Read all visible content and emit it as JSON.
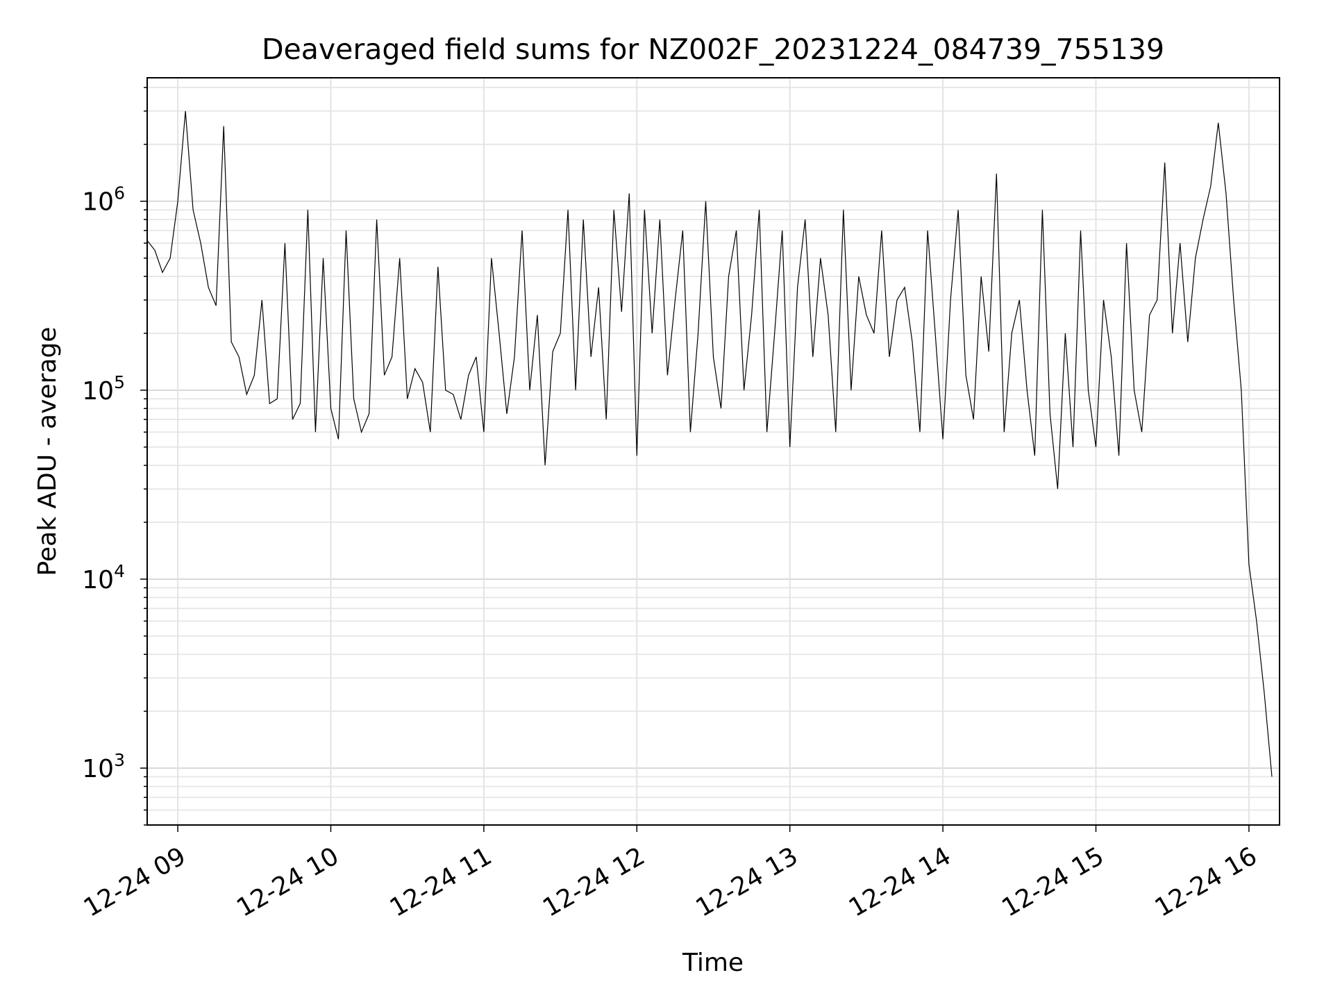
{
  "chart_data": {
    "type": "line",
    "title": "Deaveraged field sums for NZ002F_20231224_084739_755139",
    "xlabel": "Time",
    "ylabel": "Peak ADU - average",
    "y_scale": "log",
    "xlim": [
      "2023-12-24T08:48",
      "2023-12-24T16:12"
    ],
    "ylim": [
      500,
      4500000
    ],
    "grid": true,
    "legend": "none",
    "x_tick_labels": [
      "12-24 09",
      "12-24 10",
      "12-24 11",
      "12-24 12",
      "12-24 13",
      "12-24 14",
      "12-24 15",
      "12-24 16"
    ],
    "y_tick_labels": [
      {
        "base": "10",
        "exp": "3"
      },
      {
        "base": "10",
        "exp": "4"
      },
      {
        "base": "10",
        "exp": "5"
      },
      {
        "base": "10",
        "exp": "6"
      }
    ],
    "series": [
      {
        "color": "#000000",
        "x": [
          "2023-12-24T08:48",
          "2023-12-24T08:51",
          "2023-12-24T08:54",
          "2023-12-24T08:57",
          "2023-12-24T09:00",
          "2023-12-24T09:03",
          "2023-12-24T09:06",
          "2023-12-24T09:09",
          "2023-12-24T09:12",
          "2023-12-24T09:15",
          "2023-12-24T09:18",
          "2023-12-24T09:21",
          "2023-12-24T09:24",
          "2023-12-24T09:27",
          "2023-12-24T09:30",
          "2023-12-24T09:33",
          "2023-12-24T09:36",
          "2023-12-24T09:39",
          "2023-12-24T09:42",
          "2023-12-24T09:45",
          "2023-12-24T09:48",
          "2023-12-24T09:51",
          "2023-12-24T09:54",
          "2023-12-24T09:57",
          "2023-12-24T10:00",
          "2023-12-24T10:03",
          "2023-12-24T10:06",
          "2023-12-24T10:09",
          "2023-12-24T10:12",
          "2023-12-24T10:15",
          "2023-12-24T10:18",
          "2023-12-24T10:21",
          "2023-12-24T10:24",
          "2023-12-24T10:27",
          "2023-12-24T10:30",
          "2023-12-24T10:33",
          "2023-12-24T10:36",
          "2023-12-24T10:39",
          "2023-12-24T10:42",
          "2023-12-24T10:45",
          "2023-12-24T10:48",
          "2023-12-24T10:51",
          "2023-12-24T10:54",
          "2023-12-24T10:57",
          "2023-12-24T11:00",
          "2023-12-24T11:03",
          "2023-12-24T11:06",
          "2023-12-24T11:09",
          "2023-12-24T11:12",
          "2023-12-24T11:15",
          "2023-12-24T11:18",
          "2023-12-24T11:21",
          "2023-12-24T11:24",
          "2023-12-24T11:27",
          "2023-12-24T11:30",
          "2023-12-24T11:33",
          "2023-12-24T11:36",
          "2023-12-24T11:39",
          "2023-12-24T11:42",
          "2023-12-24T11:45",
          "2023-12-24T11:48",
          "2023-12-24T11:51",
          "2023-12-24T11:54",
          "2023-12-24T11:57",
          "2023-12-24T12:00",
          "2023-12-24T12:03",
          "2023-12-24T12:06",
          "2023-12-24T12:09",
          "2023-12-24T12:12",
          "2023-12-24T12:15",
          "2023-12-24T12:18",
          "2023-12-24T12:21",
          "2023-12-24T12:24",
          "2023-12-24T12:27",
          "2023-12-24T12:30",
          "2023-12-24T12:33",
          "2023-12-24T12:36",
          "2023-12-24T12:39",
          "2023-12-24T12:42",
          "2023-12-24T12:45",
          "2023-12-24T12:48",
          "2023-12-24T12:51",
          "2023-12-24T12:54",
          "2023-12-24T12:57",
          "2023-12-24T13:00",
          "2023-12-24T13:03",
          "2023-12-24T13:06",
          "2023-12-24T13:09",
          "2023-12-24T13:12",
          "2023-12-24T13:15",
          "2023-12-24T13:18",
          "2023-12-24T13:21",
          "2023-12-24T13:24",
          "2023-12-24T13:27",
          "2023-12-24T13:30",
          "2023-12-24T13:33",
          "2023-12-24T13:36",
          "2023-12-24T13:39",
          "2023-12-24T13:42",
          "2023-12-24T13:45",
          "2023-12-24T13:48",
          "2023-12-24T13:51",
          "2023-12-24T13:54",
          "2023-12-24T13:57",
          "2023-12-24T14:00",
          "2023-12-24T14:03",
          "2023-12-24T14:06",
          "2023-12-24T14:09",
          "2023-12-24T14:12",
          "2023-12-24T14:15",
          "2023-12-24T14:18",
          "2023-12-24T14:21",
          "2023-12-24T14:24",
          "2023-12-24T14:27",
          "2023-12-24T14:30",
          "2023-12-24T14:33",
          "2023-12-24T14:36",
          "2023-12-24T14:39",
          "2023-12-24T14:42",
          "2023-12-24T14:45",
          "2023-12-24T14:48",
          "2023-12-24T14:51",
          "2023-12-24T14:54",
          "2023-12-24T14:57",
          "2023-12-24T15:00",
          "2023-12-24T15:03",
          "2023-12-24T15:06",
          "2023-12-24T15:09",
          "2023-12-24T15:12",
          "2023-12-24T15:15",
          "2023-12-24T15:18",
          "2023-12-24T15:21",
          "2023-12-24T15:24",
          "2023-12-24T15:27",
          "2023-12-24T15:30",
          "2023-12-24T15:33",
          "2023-12-24T15:36",
          "2023-12-24T15:39",
          "2023-12-24T15:42",
          "2023-12-24T15:45",
          "2023-12-24T15:48",
          "2023-12-24T15:51",
          "2023-12-24T15:54",
          "2023-12-24T15:57",
          "2023-12-24T16:00",
          "2023-12-24T16:03",
          "2023-12-24T16:06",
          "2023-12-24T16:09"
        ],
        "y": [
          620000,
          550000,
          420000,
          500000,
          1000000,
          3000000,
          900000,
          600000,
          350000,
          280000,
          2500000,
          180000,
          150000,
          95000,
          120000,
          300000,
          85000,
          90000,
          600000,
          70000,
          85000,
          900000,
          60000,
          500000,
          80000,
          55000,
          700000,
          90000,
          60000,
          75000,
          800000,
          120000,
          150000,
          500000,
          90000,
          130000,
          110000,
          60000,
          450000,
          100000,
          95000,
          70000,
          120000,
          150000,
          60000,
          500000,
          200000,
          75000,
          150000,
          700000,
          100000,
          250000,
          40000,
          160000,
          200000,
          900000,
          100000,
          800000,
          150000,
          350000,
          70000,
          900000,
          260000,
          1100000,
          45000,
          900000,
          200000,
          800000,
          120000,
          300000,
          700000,
          60000,
          200000,
          1000000,
          150000,
          80000,
          400000,
          700000,
          100000,
          250000,
          900000,
          60000,
          200000,
          700000,
          50000,
          350000,
          800000,
          150000,
          500000,
          250000,
          60000,
          900000,
          100000,
          400000,
          250000,
          200000,
          700000,
          150000,
          300000,
          350000,
          180000,
          60000,
          700000,
          200000,
          55000,
          300000,
          900000,
          120000,
          70000,
          400000,
          160000,
          1400000,
          60000,
          200000,
          300000,
          100000,
          45000,
          900000,
          75000,
          30000,
          200000,
          50000,
          700000,
          100000,
          50000,
          300000,
          150000,
          45000,
          600000,
          100000,
          60000,
          250000,
          300000,
          1600000,
          200000,
          600000,
          180000,
          500000,
          800000,
          1200000,
          2600000,
          1100000,
          300000,
          100000,
          12000,
          6000,
          2500,
          900
        ]
      }
    ]
  }
}
